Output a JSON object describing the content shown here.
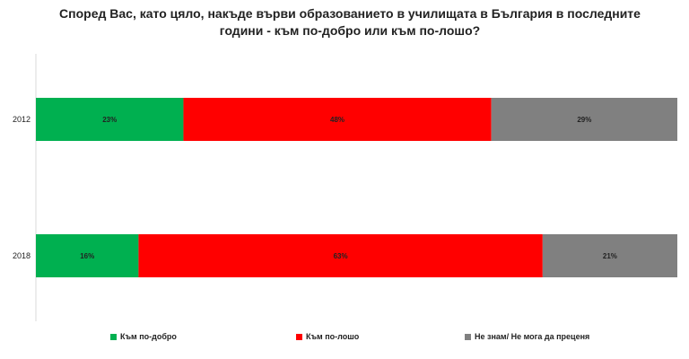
{
  "chart_data": {
    "type": "bar",
    "orientation": "horizontal",
    "stacked": true,
    "title": "Според Вас, като цяло, накъде върви образованието в училищата в България в последните години - към по-добро или към по-лошо?",
    "categories": [
      "2012",
      "2018"
    ],
    "series": [
      {
        "name": "Към по-добро",
        "values": [
          23,
          16
        ],
        "labels": [
          "23%",
          "16%"
        ],
        "color": "#00b050"
      },
      {
        "name": "Към по-лошо",
        "values": [
          48,
          63
        ],
        "labels": [
          "48%",
          "63%"
        ],
        "color": "#ff0000"
      },
      {
        "name": "Не знам/ Не мога да преценя",
        "values": [
          29,
          21
        ],
        "labels": [
          "29%",
          "21%"
        ],
        "color": "#808080"
      }
    ],
    "xlim": [
      0,
      100
    ],
    "grid": false,
    "legend_position": "bottom"
  }
}
